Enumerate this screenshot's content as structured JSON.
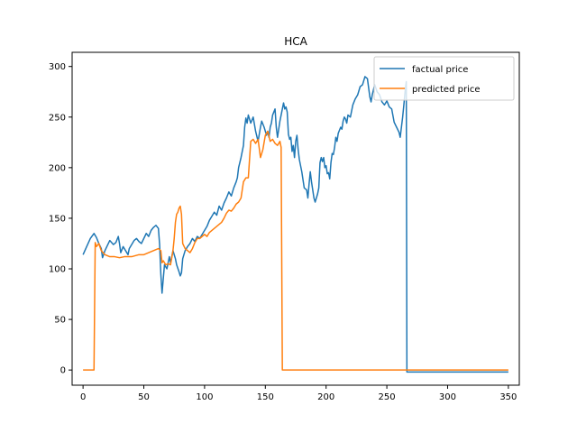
{
  "chart_data": {
    "type": "line",
    "title": "HCA",
    "xlabel": "",
    "ylabel": "",
    "xlim": [
      -9,
      359
    ],
    "ylim": [
      -15,
      314
    ],
    "x_ticks": [
      0,
      50,
      100,
      150,
      200,
      250,
      300,
      350
    ],
    "y_ticks": [
      0,
      50,
      100,
      150,
      200,
      250,
      300
    ],
    "grid": false,
    "legend_position": "top-right",
    "series": [
      {
        "name": "factual price",
        "color": "#1f77b4",
        "points": [
          [
            0,
            114
          ],
          [
            3,
            122
          ],
          [
            6,
            130
          ],
          [
            9,
            135
          ],
          [
            11,
            131
          ],
          [
            13,
            125
          ],
          [
            15,
            120
          ],
          [
            16,
            111
          ],
          [
            18,
            118
          ],
          [
            20,
            123
          ],
          [
            22,
            128
          ],
          [
            25,
            124
          ],
          [
            27,
            126
          ],
          [
            29,
            132
          ],
          [
            30,
            125
          ],
          [
            31,
            116
          ],
          [
            33,
            122
          ],
          [
            35,
            118
          ],
          [
            37,
            114
          ],
          [
            38,
            120
          ],
          [
            40,
            124
          ],
          [
            42,
            128
          ],
          [
            44,
            130
          ],
          [
            46,
            127
          ],
          [
            48,
            125
          ],
          [
            50,
            130
          ],
          [
            52,
            135
          ],
          [
            54,
            132
          ],
          [
            56,
            138
          ],
          [
            58,
            141
          ],
          [
            60,
            143
          ],
          [
            62,
            140
          ],
          [
            63,
            124
          ],
          [
            64,
            95
          ],
          [
            65,
            76
          ],
          [
            66,
            90
          ],
          [
            67,
            104
          ],
          [
            69,
            100
          ],
          [
            71,
            112
          ],
          [
            72,
            106
          ],
          [
            74,
            118
          ],
          [
            76,
            110
          ],
          [
            77,
            104
          ],
          [
            79,
            97
          ],
          [
            80,
            93
          ],
          [
            81,
            96
          ],
          [
            82,
            110
          ],
          [
            84,
            118
          ],
          [
            86,
            122
          ],
          [
            88,
            125
          ],
          [
            90,
            130
          ],
          [
            92,
            127
          ],
          [
            94,
            132
          ],
          [
            96,
            130
          ],
          [
            98,
            134
          ],
          [
            100,
            138
          ],
          [
            102,
            142
          ],
          [
            104,
            148
          ],
          [
            106,
            152
          ],
          [
            108,
            156
          ],
          [
            110,
            153
          ],
          [
            112,
            162
          ],
          [
            114,
            158
          ],
          [
            116,
            165
          ],
          [
            118,
            170
          ],
          [
            120,
            176
          ],
          [
            122,
            172
          ],
          [
            124,
            180
          ],
          [
            126,
            186
          ],
          [
            127,
            190
          ],
          [
            128,
            200
          ],
          [
            130,
            210
          ],
          [
            132,
            222
          ],
          [
            133,
            240
          ],
          [
            134,
            249
          ],
          [
            135,
            244
          ],
          [
            136,
            252
          ],
          [
            138,
            244
          ],
          [
            140,
            250
          ],
          [
            142,
            236
          ],
          [
            144,
            226
          ],
          [
            146,
            240
          ],
          [
            147,
            246
          ],
          [
            149,
            240
          ],
          [
            151,
            232
          ],
          [
            152,
            236
          ],
          [
            153,
            230
          ],
          [
            154,
            240
          ],
          [
            155,
            244
          ],
          [
            156,
            252
          ],
          [
            158,
            258
          ],
          [
            159,
            240
          ],
          [
            160,
            230
          ],
          [
            161,
            238
          ],
          [
            162,
            246
          ],
          [
            163,
            252
          ],
          [
            164,
            258
          ],
          [
            165,
            264
          ],
          [
            166,
            258
          ],
          [
            167,
            260
          ],
          [
            168,
            255
          ],
          [
            169,
            233
          ],
          [
            170,
            228
          ],
          [
            171,
            230
          ],
          [
            172,
            216
          ],
          [
            173,
            222
          ],
          [
            174,
            210
          ],
          [
            175,
            226
          ],
          [
            176,
            232
          ],
          [
            177,
            218
          ],
          [
            178,
            208
          ],
          [
            180,
            196
          ],
          [
            182,
            180
          ],
          [
            184,
            178
          ],
          [
            185,
            170
          ],
          [
            186,
            184
          ],
          [
            187,
            196
          ],
          [
            188,
            186
          ],
          [
            189,
            178
          ],
          [
            190,
            170
          ],
          [
            191,
            166
          ],
          [
            192,
            170
          ],
          [
            193,
            174
          ],
          [
            194,
            180
          ],
          [
            195,
            205
          ],
          [
            196,
            210
          ],
          [
            197,
            206
          ],
          [
            198,
            210
          ],
          [
            199,
            200
          ],
          [
            200,
            202
          ],
          [
            201,
            194
          ],
          [
            202,
            195
          ],
          [
            203,
            189
          ],
          [
            204,
            205
          ],
          [
            205,
            214
          ],
          [
            206,
            213
          ],
          [
            207,
            220
          ],
          [
            208,
            230
          ],
          [
            209,
            226
          ],
          [
            210,
            234
          ],
          [
            212,
            240
          ],
          [
            213,
            238
          ],
          [
            214,
            246
          ],
          [
            215,
            250
          ],
          [
            216,
            248
          ],
          [
            217,
            244
          ],
          [
            218,
            252
          ],
          [
            220,
            250
          ],
          [
            222,
            262
          ],
          [
            224,
            268
          ],
          [
            226,
            272
          ],
          [
            228,
            280
          ],
          [
            230,
            282
          ],
          [
            232,
            290
          ],
          [
            234,
            288
          ],
          [
            236,
            270
          ],
          [
            237,
            265
          ],
          [
            238,
            272
          ],
          [
            240,
            282
          ],
          [
            242,
            275
          ],
          [
            244,
            272
          ],
          [
            246,
            265
          ],
          [
            248,
            262
          ],
          [
            250,
            266
          ],
          [
            252,
            260
          ],
          [
            254,
            258
          ],
          [
            256,
            245
          ],
          [
            258,
            240
          ],
          [
            260,
            235
          ],
          [
            261,
            230
          ],
          [
            262,
            240
          ],
          [
            263,
            250
          ],
          [
            264,
            262
          ],
          [
            265,
            275
          ],
          [
            266,
            285
          ],
          [
            266.5,
            -2
          ],
          [
            270,
            -2
          ],
          [
            300,
            -2
          ],
          [
            320,
            -2
          ],
          [
            350,
            -2
          ]
        ]
      },
      {
        "name": "predicted price",
        "color": "#ff7f0e",
        "points": [
          [
            0,
            0
          ],
          [
            9,
            0
          ],
          [
            10,
            126
          ],
          [
            11,
            122
          ],
          [
            13,
            125
          ],
          [
            15,
            118
          ],
          [
            18,
            114
          ],
          [
            22,
            112
          ],
          [
            26,
            112
          ],
          [
            30,
            111
          ],
          [
            34,
            112
          ],
          [
            40,
            112
          ],
          [
            46,
            114
          ],
          [
            50,
            114
          ],
          [
            54,
            116
          ],
          [
            58,
            118
          ],
          [
            62,
            120
          ],
          [
            64,
            118
          ],
          [
            65,
            106
          ],
          [
            66,
            108
          ],
          [
            68,
            104
          ],
          [
            70,
            105
          ],
          [
            72,
            104
          ],
          [
            74,
            118
          ],
          [
            75,
            130
          ],
          [
            76,
            146
          ],
          [
            77,
            154
          ],
          [
            78,
            156
          ],
          [
            79,
            160
          ],
          [
            80,
            162
          ],
          [
            81,
            154
          ],
          [
            82,
            125
          ],
          [
            84,
            120
          ],
          [
            86,
            118
          ],
          [
            88,
            116
          ],
          [
            90,
            120
          ],
          [
            92,
            126
          ],
          [
            94,
            130
          ],
          [
            96,
            130
          ],
          [
            98,
            132
          ],
          [
            100,
            134
          ],
          [
            102,
            132
          ],
          [
            104,
            136
          ],
          [
            106,
            138
          ],
          [
            108,
            140
          ],
          [
            110,
            142
          ],
          [
            112,
            144
          ],
          [
            114,
            146
          ],
          [
            116,
            150
          ],
          [
            118,
            155
          ],
          [
            120,
            158
          ],
          [
            122,
            157
          ],
          [
            124,
            160
          ],
          [
            126,
            164
          ],
          [
            128,
            166
          ],
          [
            130,
            170
          ],
          [
            132,
            186
          ],
          [
            134,
            190
          ],
          [
            136,
            190
          ],
          [
            138,
            226
          ],
          [
            140,
            228
          ],
          [
            142,
            224
          ],
          [
            144,
            228
          ],
          [
            146,
            210
          ],
          [
            148,
            218
          ],
          [
            150,
            232
          ],
          [
            152,
            236
          ],
          [
            154,
            226
          ],
          [
            156,
            228
          ],
          [
            158,
            224
          ],
          [
            160,
            222
          ],
          [
            162,
            226
          ],
          [
            163,
            220
          ],
          [
            164,
            0
          ],
          [
            180,
            0
          ],
          [
            200,
            0
          ],
          [
            250,
            0
          ],
          [
            300,
            0
          ],
          [
            350,
            0
          ]
        ]
      }
    ]
  }
}
